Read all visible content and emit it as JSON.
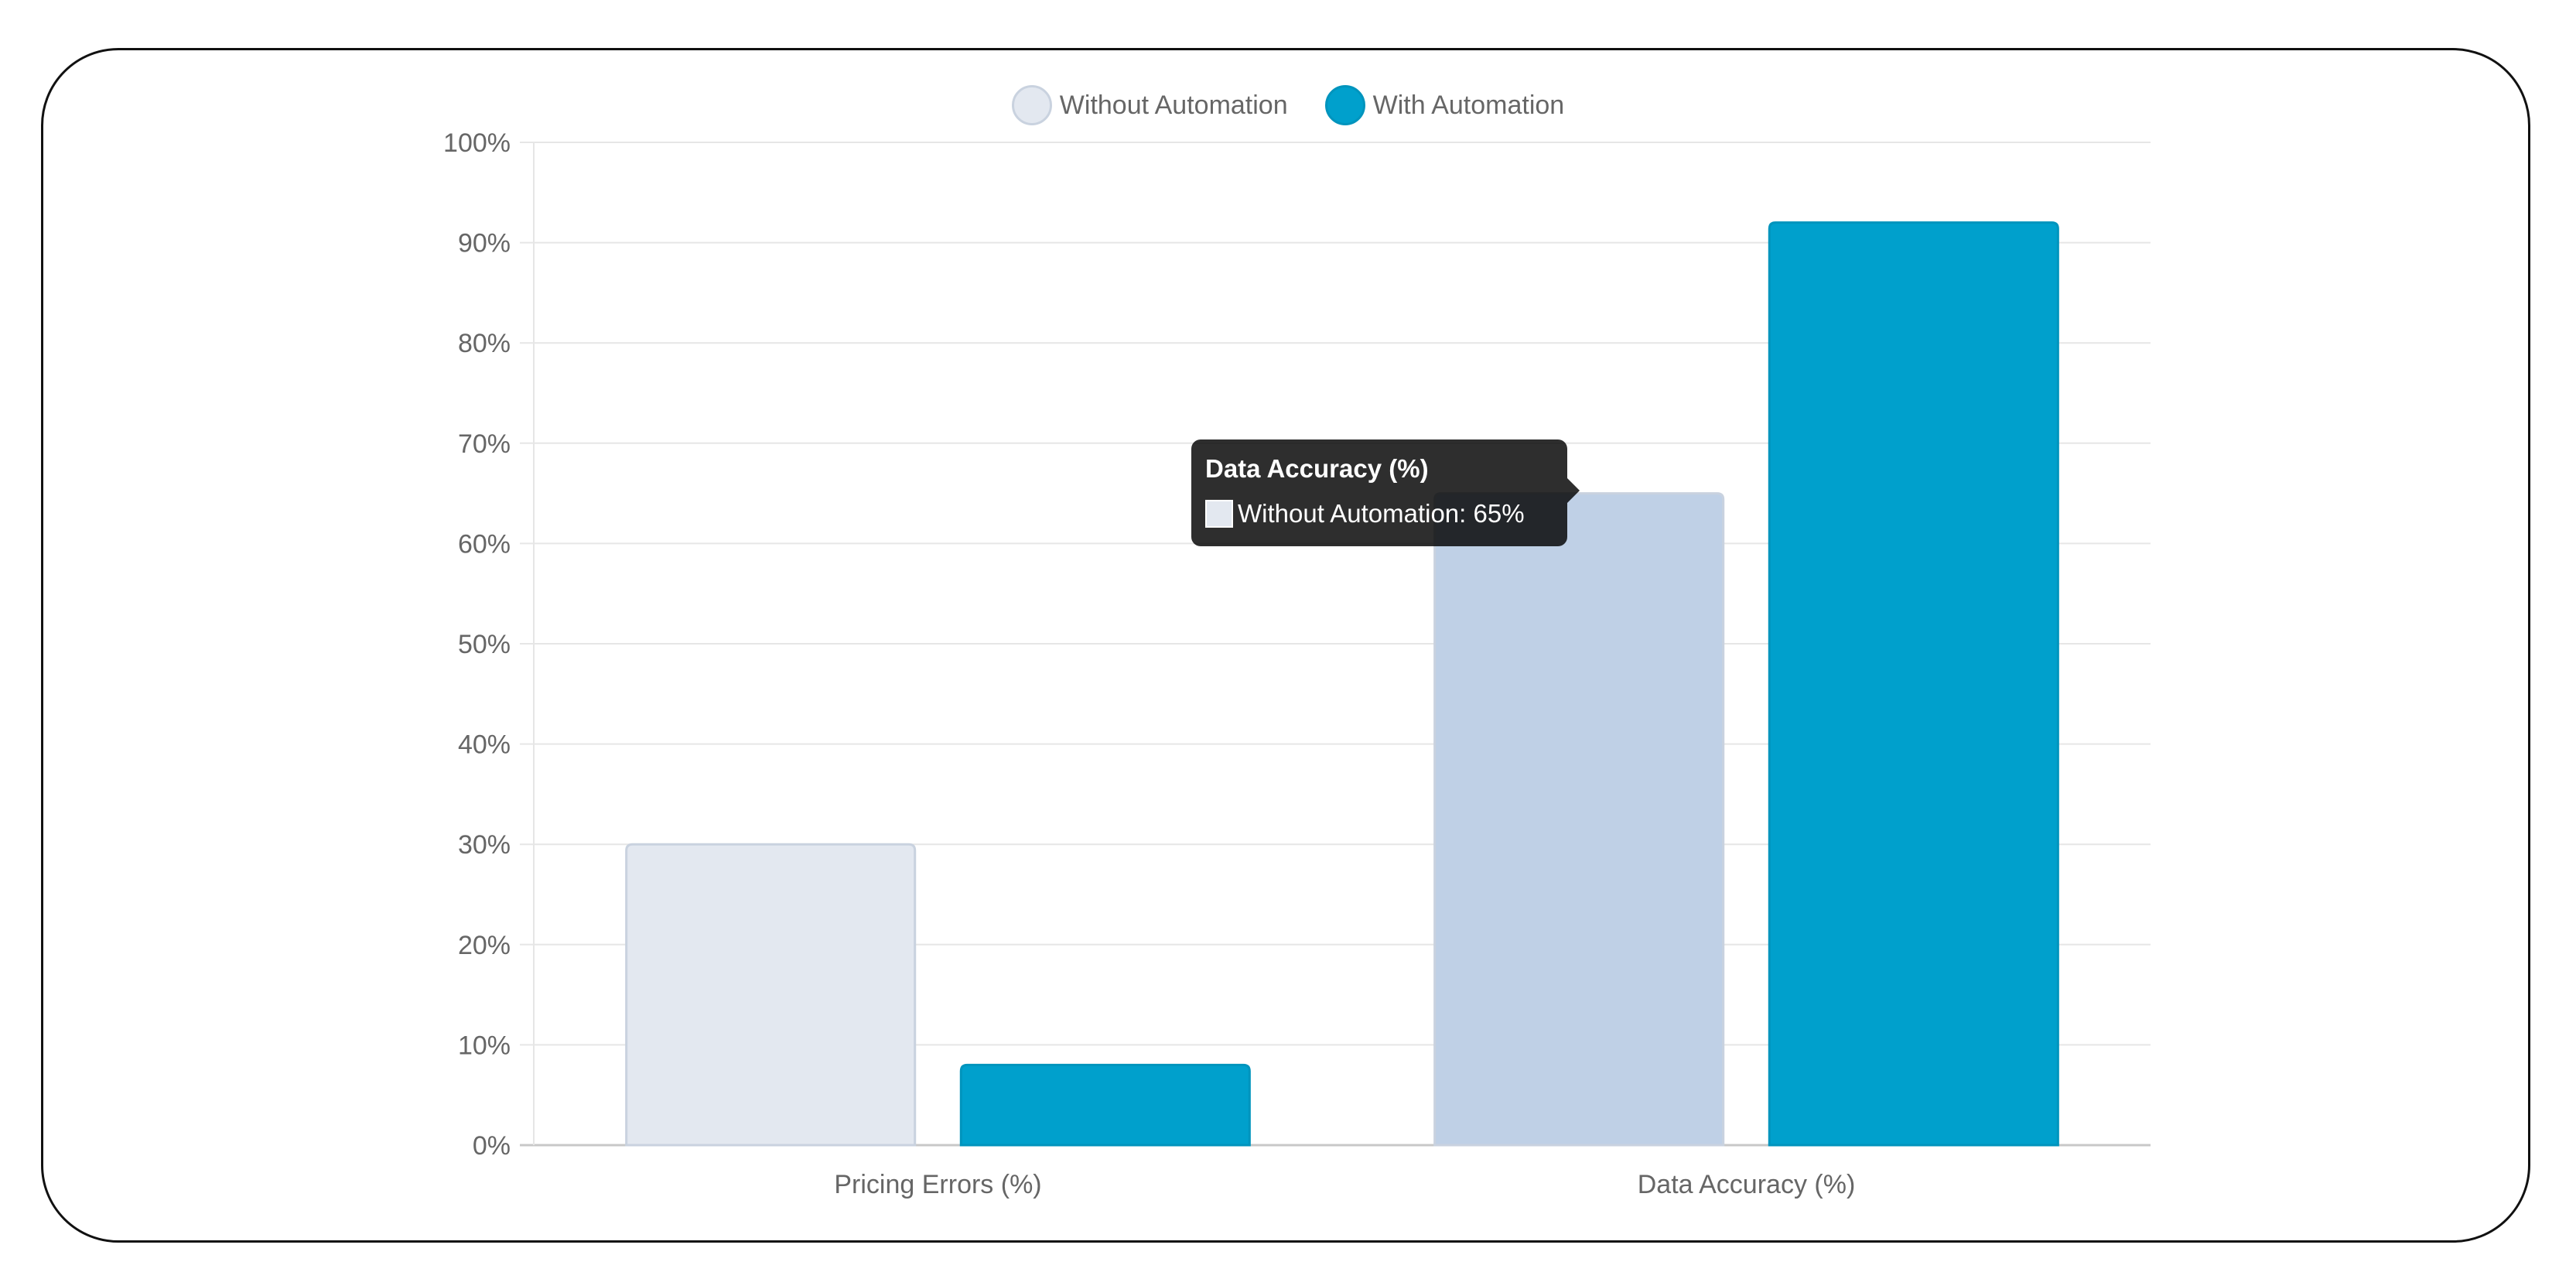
{
  "chart_data": {
    "type": "bar",
    "categories": [
      "Pricing Errors (%)",
      "Data Accuracy (%)"
    ],
    "series": [
      {
        "name": "Without Automation",
        "values": [
          30,
          65
        ],
        "color": "#e3e8f0",
        "border": "#c9d2df",
        "highlight_color": "#bfd0e6"
      },
      {
        "name": "With Automation",
        "values": [
          8,
          92
        ],
        "color": "#00a0cc",
        "border": "#0094bd"
      }
    ],
    "ylim": [
      0,
      100
    ],
    "yticks": [
      0,
      10,
      20,
      30,
      40,
      50,
      60,
      70,
      80,
      90,
      100
    ],
    "ytick_labels": [
      "0%",
      "10%",
      "20%",
      "30%",
      "40%",
      "50%",
      "60%",
      "70%",
      "80%",
      "90%",
      "100%"
    ],
    "grid": true,
    "legend": "top-center",
    "title": "",
    "xlabel": "",
    "ylabel": ""
  },
  "legend": {
    "items": [
      {
        "label": "Without Automation",
        "color": "#e3e8f0",
        "border": "#c9d2df"
      },
      {
        "label": "With Automation",
        "color": "#00a0cc",
        "border": "#0094bd"
      }
    ]
  },
  "tooltip": {
    "title": "Data Accuracy (%)",
    "line": "Without Automation: 65%",
    "swatch_color": "#e3e8f0",
    "active_category": 1,
    "active_series": 0
  }
}
